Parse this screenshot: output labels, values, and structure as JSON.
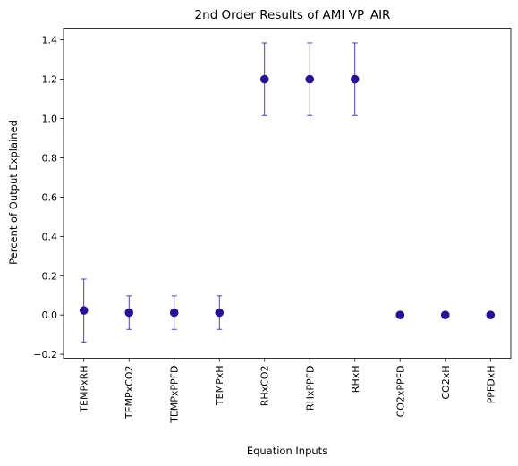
{
  "chart_data": {
    "type": "scatter",
    "title": "2nd Order Results of AMI VP_AIR",
    "xlabel": "Equation Inputs",
    "ylabel": "Percent of Output Explained",
    "categories": [
      "TEMPxRH",
      "TEMPxCO2",
      "TEMPxPPFD",
      "TEMPxH",
      "RHxCO2",
      "RHxPPFD",
      "RHxH",
      "CO2xPPFD",
      "CO2xH",
      "PPFDxH"
    ],
    "values": [
      0.023,
      0.012,
      0.012,
      0.012,
      1.2,
      1.2,
      1.2,
      0.0,
      0.0,
      0.0
    ],
    "errors": [
      0.16,
      0.085,
      0.085,
      0.085,
      0.185,
      0.185,
      0.185,
      0.0,
      0.0,
      0.0
    ],
    "ylim": [
      -0.22,
      1.46
    ],
    "yticks": [
      -0.2,
      0.0,
      0.2,
      0.4,
      0.6,
      0.8,
      1.0,
      1.2,
      1.4
    ],
    "ytick_labels": [
      "−0.2",
      "0.0",
      "0.2",
      "0.4",
      "0.6",
      "0.8",
      "1.0",
      "1.2",
      "1.4"
    ],
    "grid": false,
    "marker_color": "#2a1193",
    "error_color": "#2a1193"
  }
}
